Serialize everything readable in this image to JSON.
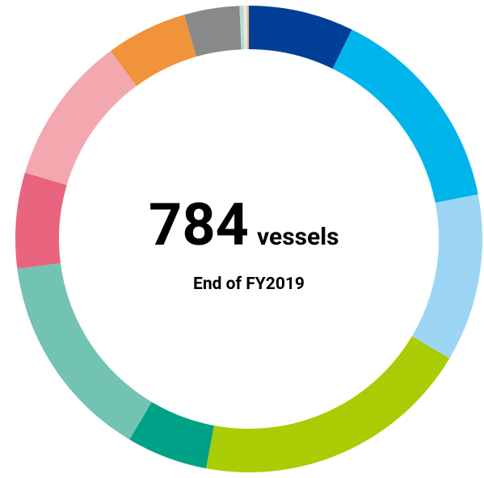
{
  "chart_data": {
    "type": "donut",
    "total": 784,
    "total_unit": "vessels",
    "subtitle": "End of FY2019",
    "series": [
      {
        "color": "#003f95",
        "values": [
          57
        ]
      },
      {
        "color": "#00b4ec",
        "values": [
          115
        ]
      },
      {
        "color": "#9dd6f4",
        "values": [
          91
        ]
      },
      {
        "color": "#aacc04",
        "values": [
          152
        ]
      },
      {
        "color": "#00a287",
        "values": [
          44
        ]
      },
      {
        "color": "#73c3b3",
        "values": [
          113
        ]
      },
      {
        "color": "#e9657f",
        "values": [
          52
        ]
      },
      {
        "color": "#f3a8b0",
        "values": [
          81
        ]
      },
      {
        "color": "#f0933b",
        "values": [
          44
        ]
      },
      {
        "color": "#898989",
        "values": [
          30
        ]
      },
      {
        "color": "#b7dccb",
        "values": [
          2
        ]
      },
      {
        "color": "#dfe9e4",
        "values": [
          2
        ]
      },
      {
        "color": "#f2b179",
        "values": [
          1
        ]
      }
    ]
  }
}
